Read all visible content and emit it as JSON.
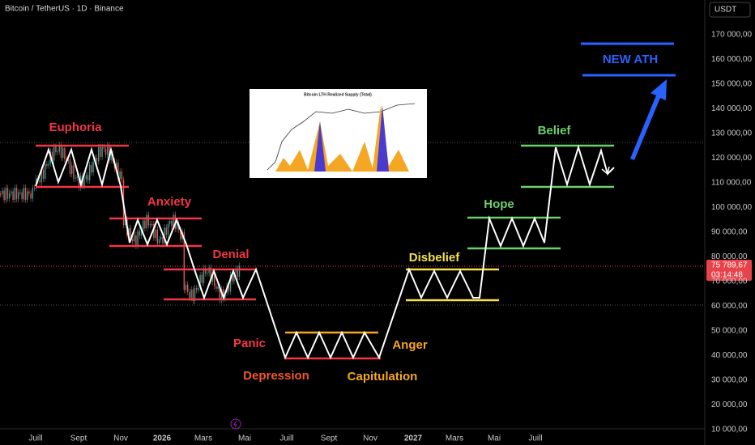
{
  "header": {
    "title": "Bitcoin / TetherUS · 1D · Binance",
    "currency": "USDT"
  },
  "price_axis": [
    "170 000,00",
    "160 000,00",
    "150 000,00",
    "140 000,00",
    "130 000,00",
    "120 000,00",
    "110 000,00",
    "100 000,00",
    "90 000,00",
    "80 000,00",
    "70 000,00",
    "60 000,00",
    "50 000,00",
    "40 000,00",
    "30 000,00",
    "20 000,00",
    "10 000,00"
  ],
  "time_axis": [
    "Juill",
    "Sept",
    "Nov",
    "2026",
    "Mars",
    "Mai",
    "Juill",
    "Sept",
    "Nov",
    "2027",
    "Mars",
    "Mai",
    "Juill"
  ],
  "current_price": {
    "price": "75 789,67",
    "countdown": "03:14:48"
  },
  "phases": [
    {
      "label": "Euphoria"
    },
    {
      "label": "Anxiety"
    },
    {
      "label": "Denial"
    },
    {
      "label": "Panic"
    },
    {
      "label": "Depression"
    },
    {
      "label": "Capitulation"
    },
    {
      "label": "Anger"
    },
    {
      "label": "Disbelief"
    },
    {
      "label": "Hope"
    },
    {
      "label": "Belief"
    },
    {
      "label": "NEW ATH"
    }
  ],
  "inset": {
    "title": "Bitcoin LTH Realized Supply (Total)"
  }
}
